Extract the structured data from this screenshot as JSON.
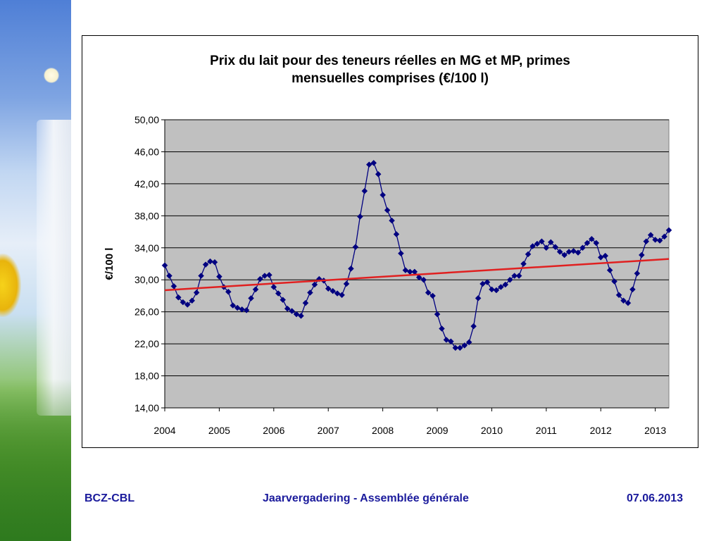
{
  "chart_data": {
    "type": "line",
    "title_lines": [
      "Prix du lait pour des teneurs réelles en MG et MP, primes",
      "mensuelles comprises (€/100 l)"
    ],
    "xlabel": "",
    "ylabel": "€/100 l",
    "ylim": [
      14,
      50
    ],
    "y_ticks": [
      50,
      46,
      42,
      38,
      34,
      30,
      26,
      22,
      18,
      14
    ],
    "y_tick_labels": [
      "50,00",
      "46,00",
      "42,00",
      "38,00",
      "34,00",
      "30,00",
      "26,00",
      "22,00",
      "18,00",
      "14,00"
    ],
    "x_ticks": [
      "2004",
      "2005",
      "2006",
      "2007",
      "2008",
      "2009",
      "2010",
      "2011",
      "2012",
      "2013"
    ],
    "x_range": [
      "2004-01",
      "2013-04"
    ],
    "grid": "horizontal",
    "plot_background": "#c0c0c0",
    "series": [
      {
        "color": "#000080",
        "marker": "diamond",
        "x": [
          "2004-01",
          "2004-02",
          "2004-03",
          "2004-04",
          "2004-05",
          "2004-06",
          "2004-07",
          "2004-08",
          "2004-09",
          "2004-10",
          "2004-11",
          "2004-12",
          "2005-01",
          "2005-02",
          "2005-03",
          "2005-04",
          "2005-05",
          "2005-06",
          "2005-07",
          "2005-08",
          "2005-09",
          "2005-10",
          "2005-11",
          "2005-12",
          "2006-01",
          "2006-02",
          "2006-03",
          "2006-04",
          "2006-05",
          "2006-06",
          "2006-07",
          "2006-08",
          "2006-09",
          "2006-10",
          "2006-11",
          "2006-12",
          "2007-01",
          "2007-02",
          "2007-03",
          "2007-04",
          "2007-05",
          "2007-06",
          "2007-07",
          "2007-08",
          "2007-09",
          "2007-10",
          "2007-11",
          "2007-12",
          "2008-01",
          "2008-02",
          "2008-03",
          "2008-04",
          "2008-05",
          "2008-06",
          "2008-07",
          "2008-08",
          "2008-09",
          "2008-10",
          "2008-11",
          "2008-12",
          "2009-01",
          "2009-02",
          "2009-03",
          "2009-04",
          "2009-05",
          "2009-06",
          "2009-07",
          "2009-08",
          "2009-09",
          "2009-10",
          "2009-11",
          "2009-12",
          "2010-01",
          "2010-02",
          "2010-03",
          "2010-04",
          "2010-05",
          "2010-06",
          "2010-07",
          "2010-08",
          "2010-09",
          "2010-10",
          "2010-11",
          "2010-12",
          "2011-01",
          "2011-02",
          "2011-03",
          "2011-04",
          "2011-05",
          "2011-06",
          "2011-07",
          "2011-08",
          "2011-09",
          "2011-10",
          "2011-11",
          "2011-12",
          "2012-01",
          "2012-02",
          "2012-03",
          "2012-04",
          "2012-05",
          "2012-06",
          "2012-07",
          "2012-08",
          "2012-09",
          "2012-10",
          "2012-11",
          "2012-12",
          "2013-01",
          "2013-02",
          "2013-03",
          "2013-04"
        ],
        "values": [
          31.8,
          30.5,
          29.2,
          27.8,
          27.2,
          26.9,
          27.4,
          28.4,
          30.5,
          31.9,
          32.3,
          32.2,
          30.4,
          29.1,
          28.5,
          26.8,
          26.5,
          26.3,
          26.2,
          27.7,
          28.8,
          30.1,
          30.5,
          30.6,
          29.1,
          28.3,
          27.5,
          26.4,
          26.1,
          25.7,
          25.5,
          27.1,
          28.4,
          29.4,
          30.1,
          29.9,
          28.9,
          28.6,
          28.3,
          28.1,
          29.5,
          31.4,
          34.1,
          37.9,
          41.1,
          44.4,
          44.6,
          43.2,
          40.6,
          38.7,
          37.4,
          35.7,
          33.3,
          31.2,
          31.0,
          31.0,
          30.3,
          30.0,
          28.4,
          28.0,
          25.7,
          23.9,
          22.5,
          22.3,
          21.5,
          21.5,
          21.8,
          22.2,
          24.2,
          27.7,
          29.5,
          29.7,
          28.8,
          28.7,
          29.1,
          29.4,
          30.0,
          30.5,
          30.5,
          32.0,
          33.2,
          34.2,
          34.5,
          34.8,
          34.0,
          34.7,
          34.1,
          33.5,
          33.1,
          33.5,
          33.6,
          33.4,
          34.0,
          34.6,
          35.1,
          34.6,
          32.8,
          33.0,
          31.2,
          29.8,
          28.1,
          27.4,
          27.1,
          28.8,
          30.8,
          33.1,
          34.8,
          35.6,
          35.0,
          34.9,
          35.4,
          36.2
        ]
      },
      {
        "color": "#e02020",
        "type": "trendline",
        "x": [
          "2004-01",
          "2013-04"
        ],
        "values": [
          28.7,
          32.6
        ]
      }
    ]
  },
  "footer": {
    "left": "BCZ-CBL",
    "center": "Jaarvergadering  -  Assemblée générale",
    "right": "07.06.2013"
  }
}
